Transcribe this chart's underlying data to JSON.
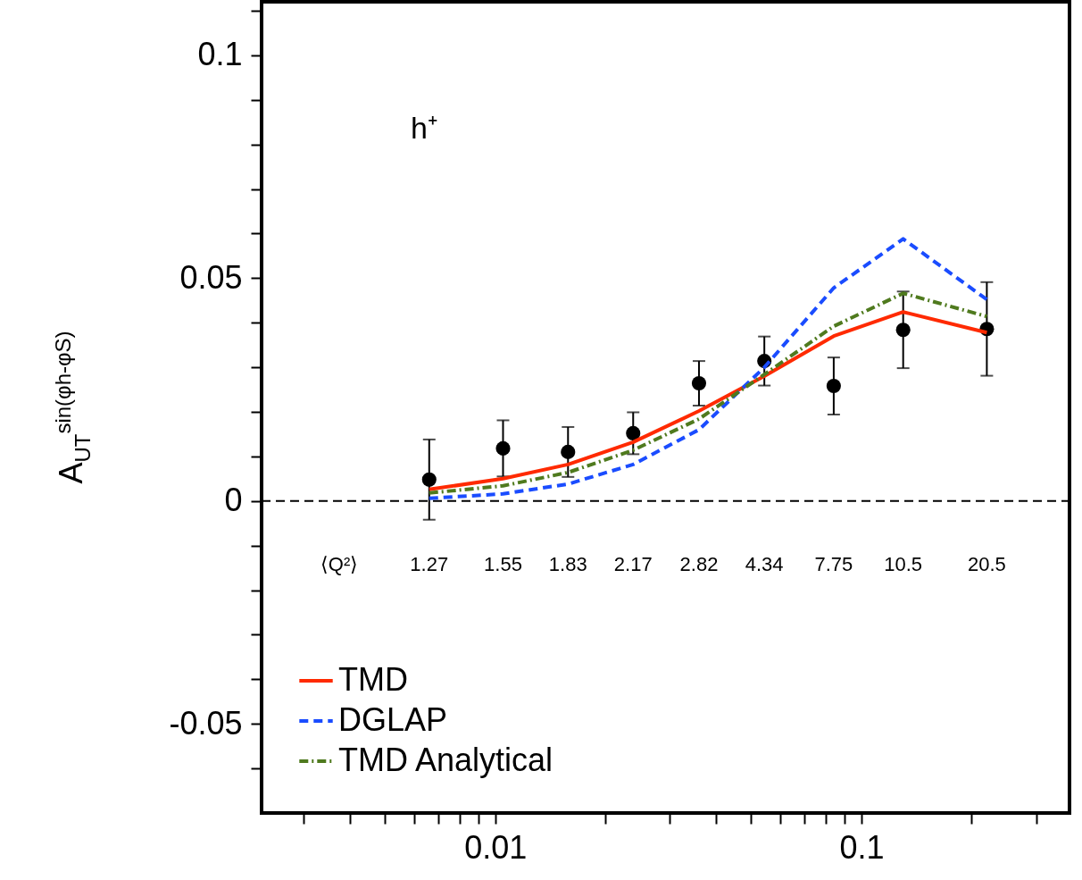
{
  "chart_data": {
    "type": "line",
    "ylabel": "A$_{UT}$$^{sin(φh-φS)}$",
    "log": "x",
    "xlim": [
      0.0023,
      0.37
    ],
    "ylim": [
      -0.07,
      0.112
    ],
    "xticks": [
      {
        "value": 0.003,
        "label": null
      },
      {
        "value": 0.004,
        "label": null
      },
      {
        "value": 0.005,
        "label": null
      },
      {
        "value": 0.006,
        "label": null
      },
      {
        "value": 0.007,
        "label": null
      },
      {
        "value": 0.008,
        "label": null
      },
      {
        "value": 0.009,
        "label": null
      },
      0.01,
      {
        "value": 0.02,
        "label": null
      },
      {
        "value": 0.03,
        "label": null
      },
      {
        "value": 0.04,
        "label": null
      },
      {
        "value": 0.05,
        "label": null
      },
      {
        "value": 0.06,
        "label": null
      },
      {
        "value": 0.07,
        "label": null
      },
      {
        "value": 0.08,
        "label": null
      },
      {
        "value": 0.09,
        "label": null
      },
      0.1,
      {
        "value": 0.2,
        "label": null
      },
      {
        "value": 0.3,
        "label": null
      }
    ],
    "yticks": [
      {
        "value": -0.06,
        "label": null
      },
      -0.05,
      {
        "value": -0.04,
        "label": null
      },
      {
        "value": -0.03,
        "label": null
      },
      {
        "value": -0.02,
        "label": null
      },
      {
        "value": -0.01,
        "label": null
      },
      0,
      {
        "value": 0.01,
        "label": null
      },
      {
        "value": 0.02,
        "label": null
      },
      {
        "value": 0.03,
        "label": null
      },
      {
        "value": 0.04,
        "label": null
      },
      0.05,
      {
        "value": 0.06,
        "label": null
      },
      {
        "value": 0.07,
        "label": null
      },
      {
        "value": 0.08,
        "label": null
      },
      {
        "value": 0.09,
        "label": null
      },
      0.1,
      {
        "value": 0.11,
        "label": null
      }
    ],
    "x": [
      0.0066,
      0.0105,
      0.0158,
      0.0238,
      0.036,
      0.0543,
      0.084,
      0.13,
      0.22
    ],
    "series": [
      {
        "type": "scatter",
        "color": "#000000",
        "marker": "circle",
        "values": [
          0.0048,
          0.0118,
          0.011,
          0.0152,
          0.0264,
          0.0314,
          0.0258,
          0.0384,
          0.0386
        ],
        "errors": [
          0.009,
          0.0063,
          0.0056,
          0.0047,
          0.005,
          0.0055,
          0.0064,
          0.0086,
          0.0105
        ]
      },
      {
        "name": "TMD",
        "color": "#ff2a00",
        "line_style": "solid",
        "values": [
          0.0026,
          0.005,
          0.0082,
          0.0132,
          0.0202,
          0.028,
          0.037,
          0.0424,
          0.0378
        ]
      },
      {
        "name": "DGLAP",
        "color": "#1a4cff",
        "line_style": "dashed",
        "values": [
          0.0006,
          0.0016,
          0.0038,
          0.0082,
          0.016,
          0.03,
          0.0478,
          0.0588,
          0.0452
        ]
      },
      {
        "name": "TMD Analytical",
        "color": "#4f7a1e",
        "line_style": "dashdot",
        "values": [
          0.0018,
          0.0034,
          0.0064,
          0.0114,
          0.0184,
          0.0284,
          0.0392,
          0.0466,
          0.0414
        ]
      }
    ],
    "ref_lines": [
      {
        "axis": "y",
        "value": 0,
        "color": "#000000",
        "line_style": "dashed"
      }
    ],
    "annotations": [
      "h⁺",
      "⟨Q²⟩",
      "1.27",
      "1.55",
      "1.83",
      "2.17",
      "2.82",
      "4.34",
      "7.75",
      "10.5",
      "20.5"
    ],
    "legend": "bottom left",
    "grid": false
  }
}
